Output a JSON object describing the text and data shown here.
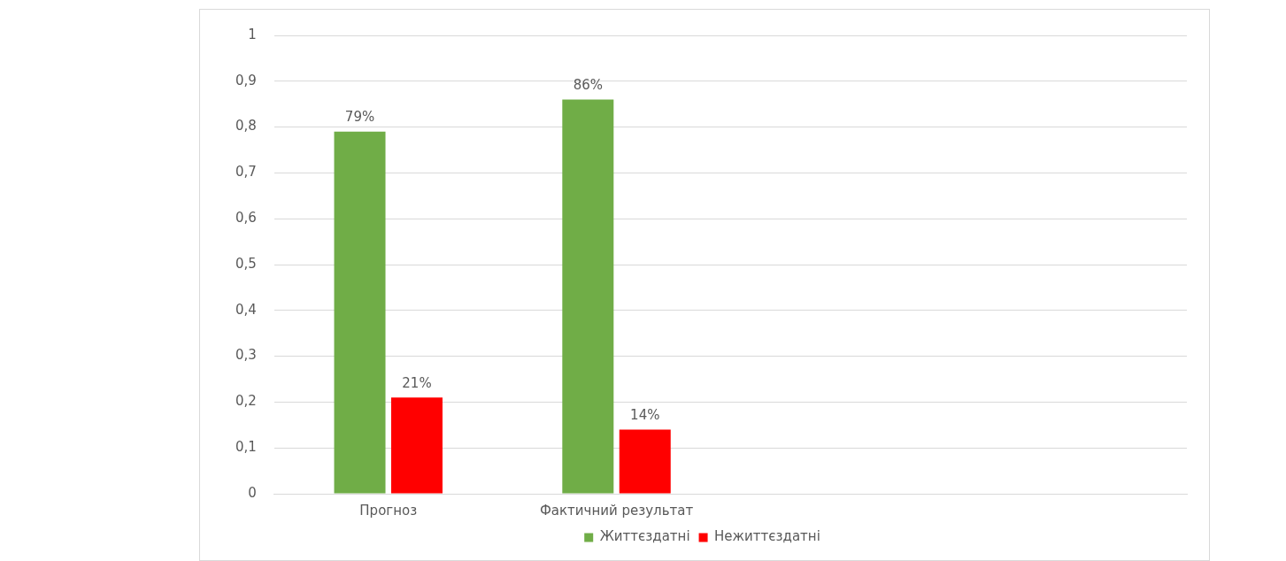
{
  "chart_data": {
    "type": "bar",
    "categories": [
      "Прогноз",
      "Фактичний результат",
      null,
      null
    ],
    "series": [
      {
        "name": "Життєздатні",
        "color": "#70ad47",
        "values": [
          0.79,
          0.86,
          null,
          null
        ],
        "value_labels": [
          "79%",
          "86%",
          null,
          null
        ]
      },
      {
        "name": "Нежиттєздатні",
        "color": "#ff0000",
        "values": [
          0.21,
          0.14,
          null,
          null
        ],
        "value_labels": [
          "21%",
          "14%",
          null,
          null
        ]
      }
    ],
    "ylim": [
      0,
      1
    ],
    "yticks": [
      0,
      {
        "value": 0.1,
        "label": "0,1"
      },
      {
        "value": 0.2,
        "label": "0,2"
      },
      {
        "value": 0.3,
        "label": "0,3"
      },
      {
        "value": 0.4,
        "label": "0,4"
      },
      {
        "value": 0.5,
        "label": "0,5"
      },
      {
        "value": 0.6,
        "label": "0,6"
      },
      {
        "value": 0.7,
        "label": "0,7"
      },
      {
        "value": 0.8,
        "label": "0,8"
      },
      {
        "value": 0.9,
        "label": "0,9"
      },
      1
    ],
    "grid": "y",
    "legend": "bottom"
  }
}
